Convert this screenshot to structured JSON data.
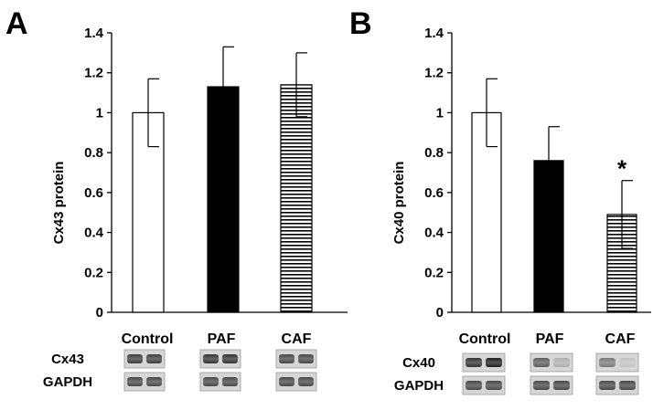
{
  "chart_data": [
    {
      "type": "bar",
      "panel": "A",
      "ylabel": "Cx43 protein",
      "categories": [
        "Control",
        "PAF",
        "CAF"
      ],
      "values": [
        1.0,
        1.13,
        1.14
      ],
      "errors": [
        0.17,
        0.2,
        0.16
      ],
      "fills": [
        "white",
        "black",
        "striped"
      ],
      "ylim": [
        0,
        1.4
      ],
      "yticks": [
        "0",
        "0.2",
        "0.4",
        "0.6",
        "0.8",
        "1",
        "1.2",
        "1.4"
      ],
      "significance": [
        "",
        "",
        ""
      ],
      "blots": [
        "Cx43",
        "GAPDH"
      ],
      "blot_intensity": [
        [
          0.85,
          0.85,
          0.9,
          0.9,
          0.8,
          0.8
        ],
        [
          0.8,
          0.8,
          0.8,
          0.8,
          0.8,
          0.8
        ]
      ]
    },
    {
      "type": "bar",
      "panel": "B",
      "ylabel": "Cx40 protein",
      "categories": [
        "Control",
        "PAF",
        "CAF"
      ],
      "values": [
        1.0,
        0.76,
        0.49
      ],
      "errors": [
        0.17,
        0.17,
        0.17
      ],
      "fills": [
        "white",
        "black",
        "striped"
      ],
      "ylim": [
        0,
        1.4
      ],
      "yticks": [
        "0",
        "0.2",
        "0.4",
        "0.6",
        "0.8",
        "1",
        "1.2",
        "1.4"
      ],
      "significance": [
        "",
        "",
        "*"
      ],
      "blots": [
        "Cx40",
        "GAPDH"
      ],
      "blot_intensity": [
        [
          0.9,
          1.0,
          0.7,
          0.3,
          0.55,
          0.2
        ],
        [
          0.8,
          0.8,
          0.8,
          0.8,
          0.8,
          0.8
        ]
      ]
    }
  ]
}
